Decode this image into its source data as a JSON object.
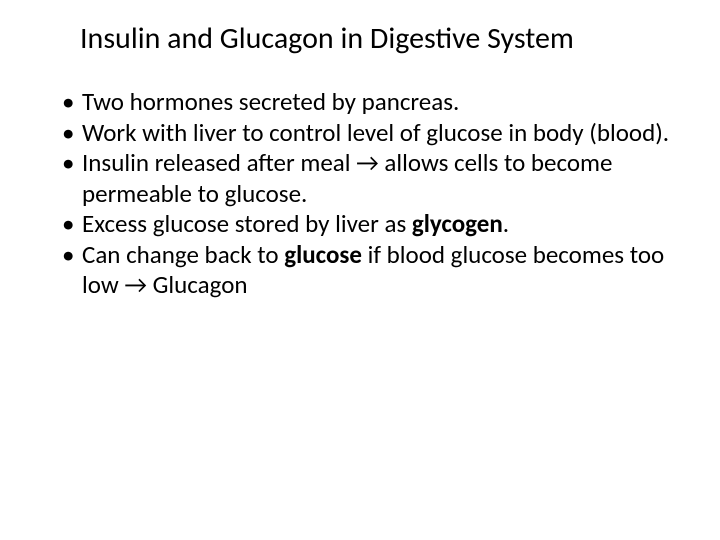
{
  "title_fontsize": 30,
  "body_fontsize": 25,
  "background_color": "#ffffff",
  "text_color": "#000000",
  "slide": {
    "title": "Insulin and Glucagon in Digestive System",
    "bullets": {
      "b0": "Two hormones secreted by pancreas.",
      "b1": "Work with liver to control level of glucose in body (blood).",
      "b2_pre": "Insulin released after meal ",
      "b2_arrow": "→",
      "b2_post": " allows cells to become permeable to glucose.",
      "b3_pre": "Excess glucose stored by liver as ",
      "b3_bold": "glycogen",
      "b3_post": ".",
      "b4_pre": "Can change back to ",
      "b4_bold": "glucose",
      "b4_mid": " if blood glucose becomes too low ",
      "b4_arrow": "→",
      "b4_post": " Glucagon"
    }
  }
}
